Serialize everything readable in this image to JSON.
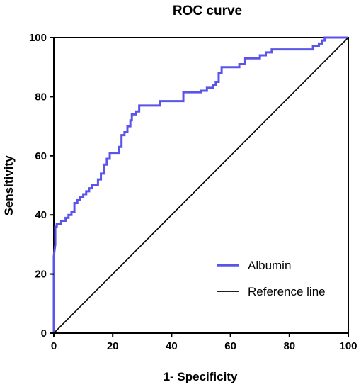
{
  "chart_data": {
    "type": "line",
    "title": "ROC curve",
    "xlabel": "1- Specificity",
    "ylabel": "Sensitivity",
    "xlim": [
      0,
      100
    ],
    "ylim": [
      0,
      100
    ],
    "x_ticks": [
      "0",
      "20",
      "40",
      "60",
      "80",
      "100"
    ],
    "y_ticks": [
      "0",
      "20",
      "40",
      "60",
      "80",
      "100"
    ],
    "grid": false,
    "legend_position": "bottom-right",
    "series": [
      {
        "name": "Albumin",
        "color": "#5a55e8",
        "style": "step",
        "points": [
          [
            0,
            0
          ],
          [
            0,
            26
          ],
          [
            0.5,
            30
          ],
          [
            0.5,
            36
          ],
          [
            1,
            36
          ],
          [
            1,
            37
          ],
          [
            2.5,
            37
          ],
          [
            2.5,
            38
          ],
          [
            4,
            38
          ],
          [
            4,
            39
          ],
          [
            5,
            39
          ],
          [
            5,
            40
          ],
          [
            6,
            40
          ],
          [
            6,
            41
          ],
          [
            7,
            41
          ],
          [
            7,
            44
          ],
          [
            8,
            44
          ],
          [
            8,
            45
          ],
          [
            9,
            45
          ],
          [
            9,
            46
          ],
          [
            10,
            46
          ],
          [
            10,
            47
          ],
          [
            11,
            47
          ],
          [
            11,
            48
          ],
          [
            12,
            48
          ],
          [
            12,
            49
          ],
          [
            13,
            49
          ],
          [
            13,
            50
          ],
          [
            15,
            50
          ],
          [
            15,
            52
          ],
          [
            16,
            52
          ],
          [
            16,
            54
          ],
          [
            17,
            54
          ],
          [
            17,
            57
          ],
          [
            18,
            57
          ],
          [
            18,
            59
          ],
          [
            19,
            59
          ],
          [
            19,
            61
          ],
          [
            22,
            61
          ],
          [
            22,
            63
          ],
          [
            23,
            63
          ],
          [
            23,
            67
          ],
          [
            24,
            67
          ],
          [
            24,
            68
          ],
          [
            25,
            68
          ],
          [
            25,
            70
          ],
          [
            26,
            70
          ],
          [
            26,
            72
          ],
          [
            26.5,
            72
          ],
          [
            26.5,
            74
          ],
          [
            28,
            74
          ],
          [
            28,
            75
          ],
          [
            29,
            75
          ],
          [
            29,
            77
          ],
          [
            36,
            77
          ],
          [
            36,
            78.5
          ],
          [
            44,
            78.5
          ],
          [
            44,
            81.5
          ],
          [
            50,
            81.5
          ],
          [
            50,
            82
          ],
          [
            52,
            82
          ],
          [
            52,
            83
          ],
          [
            54,
            83
          ],
          [
            54,
            84
          ],
          [
            55,
            84
          ],
          [
            55,
            85
          ],
          [
            56,
            85
          ],
          [
            56,
            88
          ],
          [
            57,
            88
          ],
          [
            57,
            90
          ],
          [
            63,
            90
          ],
          [
            63,
            91
          ],
          [
            65,
            91
          ],
          [
            65,
            93
          ],
          [
            70,
            93
          ],
          [
            70,
            94
          ],
          [
            72,
            94
          ],
          [
            72,
            95
          ],
          [
            74,
            95
          ],
          [
            74,
            96
          ],
          [
            88,
            96
          ],
          [
            88,
            97
          ],
          [
            90,
            97
          ],
          [
            90,
            98
          ],
          [
            91,
            98
          ],
          [
            91,
            99
          ],
          [
            92,
            99
          ],
          [
            92,
            100
          ],
          [
            100,
            100
          ]
        ]
      },
      {
        "name": "Reference line",
        "color": "#000000",
        "style": "line",
        "points": [
          [
            0,
            0
          ],
          [
            100,
            100
          ]
        ]
      }
    ]
  }
}
